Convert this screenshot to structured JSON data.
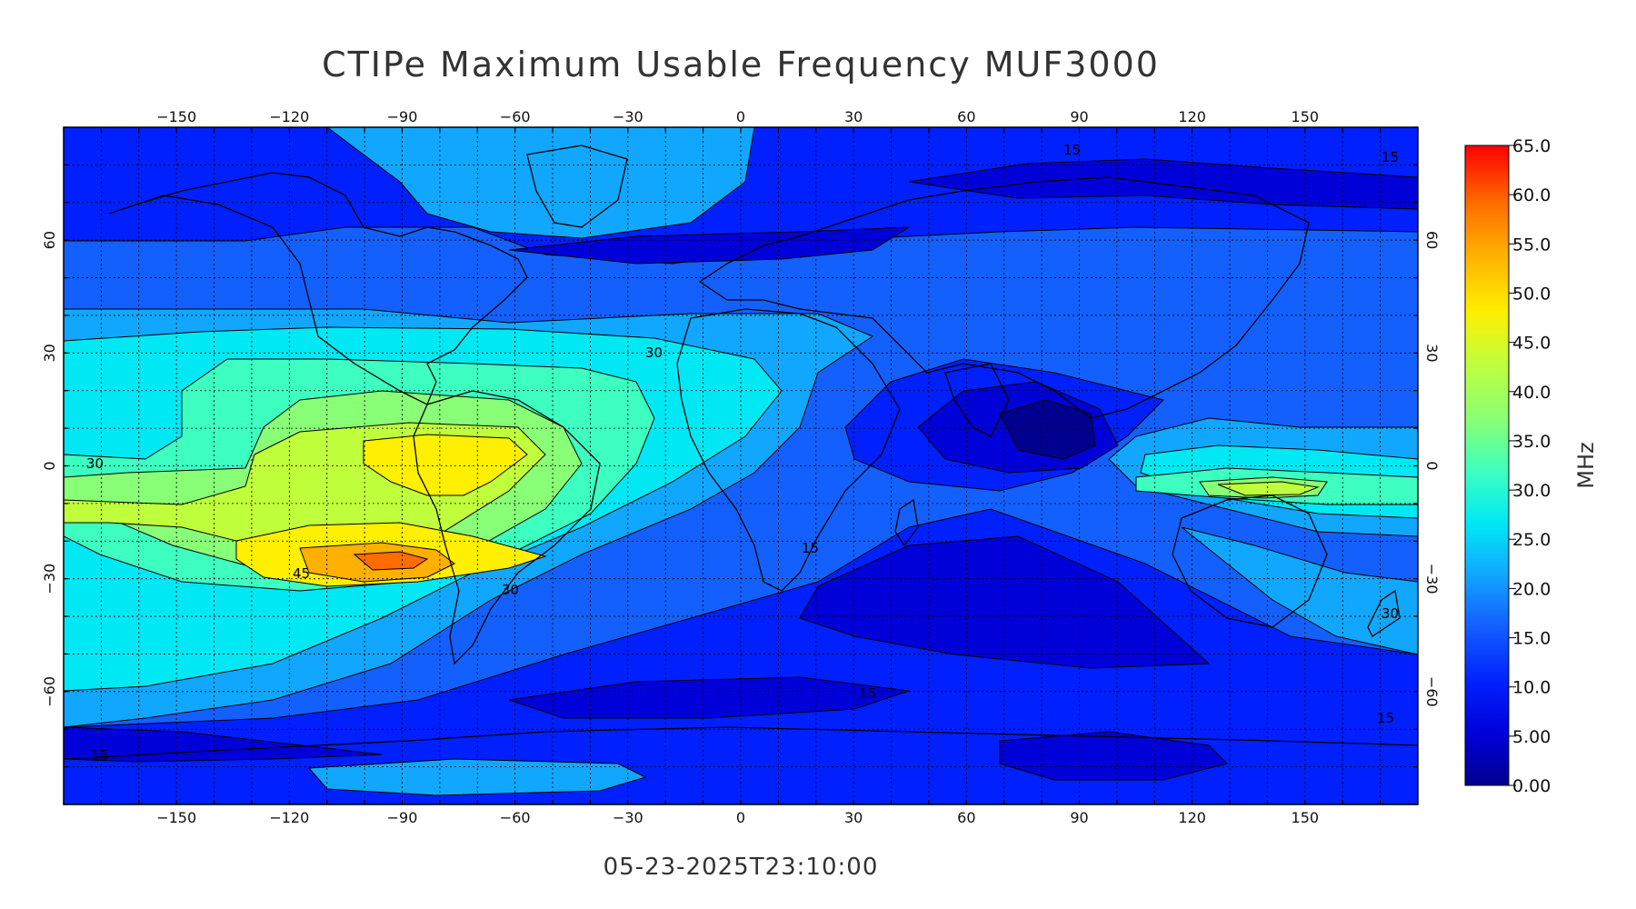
{
  "title": "CTIPe Maximum Usable Frequency MUF3000",
  "timestamp": "05-23-2025T23:10:00",
  "colorbar": {
    "unit": "MHz",
    "ticks": [
      "65.0",
      "60.0",
      "55.0",
      "50.0",
      "45.0",
      "40.0",
      "35.0",
      "30.0",
      "25.0",
      "20.0",
      "15.0",
      "10.0",
      "5.00",
      "0.00"
    ]
  },
  "colors": {
    "c0": "#00008f",
    "c5": "#0000d8",
    "c10": "#0020ff",
    "c15": "#1460ff",
    "c20": "#11a7ff",
    "c25": "#00e8f4",
    "c30": "#3cffc0",
    "c35": "#88ff76",
    "c40": "#c0ff3c",
    "c45": "#ffef00",
    "c50": "#ffb000",
    "c55": "#ff6c00",
    "c60": "#ff2200"
  },
  "map": {
    "x_ticks": [
      "-150",
      "-120",
      "-90",
      "-60",
      "-30",
      "0",
      "30",
      "60",
      "90",
      "120",
      "150"
    ],
    "y_ticks": [
      "60",
      "30",
      "0",
      "-30",
      "-60"
    ],
    "contour_labels": [
      "30",
      "30",
      "45",
      "30",
      "15",
      "15",
      "15",
      "15",
      "15",
      "15",
      "30"
    ]
  }
}
